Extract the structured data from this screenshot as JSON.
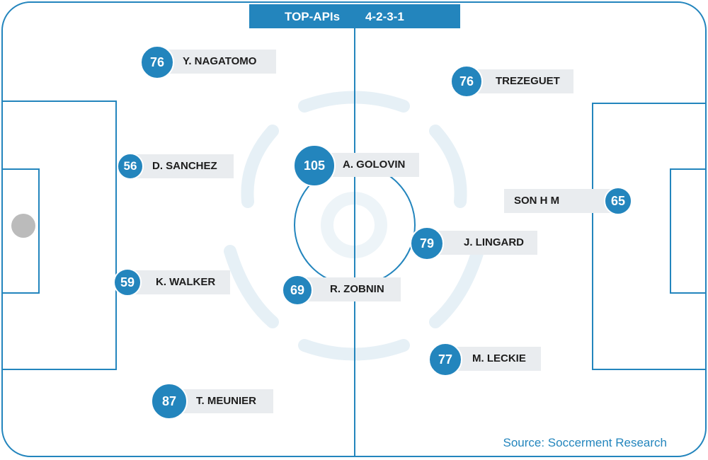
{
  "header": {
    "title": "TOP-APIs",
    "formation": "4-2-3-1"
  },
  "colors": {
    "accent": "#2385bd",
    "label_bg": "#e9ecef",
    "ball": "#bbbbbb"
  },
  "players": [
    {
      "id": "nagatomo",
      "name": "Y. NAGATOMO",
      "rating": "76"
    },
    {
      "id": "trezeguet",
      "name": "TREZEGUET",
      "rating": "76"
    },
    {
      "id": "sanchez",
      "name": "D. SANCHEZ",
      "rating": "56"
    },
    {
      "id": "golovin",
      "name": "A. GOLOVIN",
      "rating": "105"
    },
    {
      "id": "son",
      "name": "SON H M",
      "rating": "65"
    },
    {
      "id": "lingard",
      "name": "J. LINGARD",
      "rating": "79"
    },
    {
      "id": "walker",
      "name": "K. WALKER",
      "rating": "59"
    },
    {
      "id": "zobnin",
      "name": "R. ZOBNIN",
      "rating": "69"
    },
    {
      "id": "leckie",
      "name": "M. LECKIE",
      "rating": "77"
    },
    {
      "id": "meunier",
      "name": "T. MEUNIER",
      "rating": "87"
    }
  ],
  "source": "Source: Soccerment Research"
}
